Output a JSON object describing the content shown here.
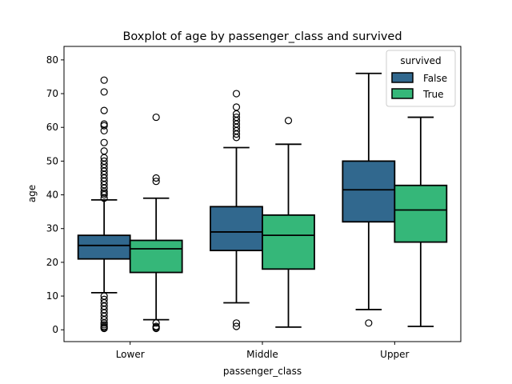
{
  "chart_data": {
    "type": "box",
    "title": "Boxplot of age by passenger_class and survived",
    "xlabel": "passenger_class",
    "ylabel": "age",
    "ylim": [
      -3.5,
      84
    ],
    "yticks": [
      0,
      10,
      20,
      30,
      40,
      50,
      60,
      70,
      80
    ],
    "categories": [
      "Lower",
      "Middle",
      "Upper"
    ],
    "legend": {
      "title": "survived",
      "position": "top-right",
      "entries": [
        "False",
        "True"
      ]
    },
    "series": [
      {
        "name": "False",
        "color": "#31688e",
        "boxes": [
          {
            "whislo": 11,
            "q1": 21,
            "med": 25,
            "q3": 28,
            "whishi": 38.5,
            "fliers": [
              0.4,
              0.7,
              1,
              1.5,
              2,
              3,
              4,
              5,
              6,
              7,
              8,
              9,
              10,
              39,
              40,
              40.5,
              41,
              42,
              43,
              44,
              45,
              46,
              47,
              48,
              49,
              50,
              51,
              53,
              55.5,
              59,
              60.5,
              61,
              65,
              70.5,
              74
            ]
          },
          {
            "whislo": 8,
            "q1": 23.5,
            "med": 29,
            "q3": 36.5,
            "whishi": 54,
            "fliers": [
              1,
              2,
              57,
              58,
              59,
              60,
              61,
              62,
              63,
              64,
              66,
              70
            ]
          },
          {
            "whislo": 6,
            "q1": 32,
            "med": 41.5,
            "q3": 50,
            "whishi": 76,
            "fliers": [
              2
            ]
          }
        ]
      },
      {
        "name": "True",
        "color": "#35b779",
        "boxes": [
          {
            "whislo": 3,
            "q1": 17,
            "med": 24,
            "q3": 26.5,
            "whishi": 39,
            "fliers": [
              0.4,
              0.7,
              1,
              2,
              44,
              45,
              63
            ]
          },
          {
            "whislo": 0.8,
            "q1": 18,
            "med": 28,
            "q3": 34,
            "whishi": 55,
            "fliers": [
              62
            ]
          },
          {
            "whislo": 1,
            "q1": 26,
            "med": 35.5,
            "q3": 42.8,
            "whishi": 63,
            "fliers": []
          }
        ]
      }
    ]
  }
}
